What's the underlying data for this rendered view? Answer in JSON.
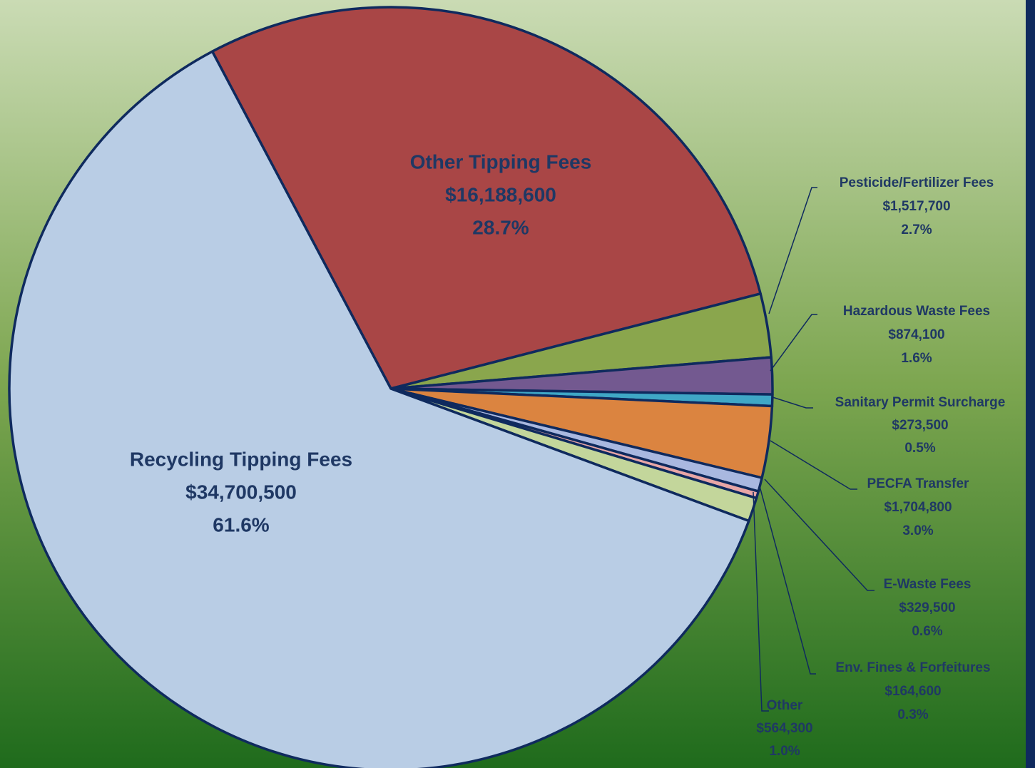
{
  "chart_data": {
    "type": "pie",
    "categories": [
      "Other Tipping Fees",
      "Pesticide/Fertilizer Fees",
      "Hazardous Waste Fees",
      "Sanitary Permit Surcharge",
      "PECFA Transfer",
      "E-Waste Fees",
      "Env. Fines & Forfeitures",
      "Other",
      "Recycling Tipping Fees"
    ],
    "values": [
      16188600,
      1517700,
      874100,
      273500,
      1704800,
      329500,
      164600,
      564300,
      34700500
    ],
    "value_labels": [
      "$16,188,600",
      "$1,517,700",
      "$874,100",
      "$273,500",
      "$1,704,800",
      "$329,500",
      "$164,600",
      "$564,300",
      "$34,700,500"
    ],
    "shares": [
      28.7,
      2.7,
      1.6,
      0.5,
      3.0,
      0.6,
      0.3,
      1.0,
      61.6
    ],
    "share_labels": [
      "28.7%",
      "2.7%",
      "1.6%",
      "0.5%",
      "3.0%",
      "0.6%",
      "0.3%",
      "1.0%",
      "61.6%"
    ],
    "colors": [
      "#a94646",
      "#8aa64d",
      "#735990",
      "#3fa7c6",
      "#db8440",
      "#a9b8e0",
      "#e8a6a6",
      "#c3d69b",
      "#b9cde5"
    ]
  }
}
